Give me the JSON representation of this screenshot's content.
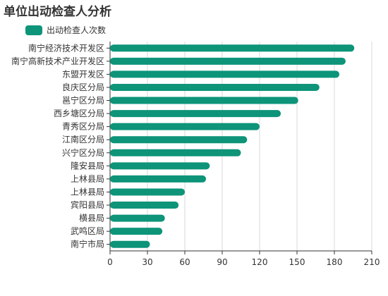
{
  "chart_data": {
    "type": "bar",
    "orientation": "horizontal",
    "title": "单位出动检查人分析",
    "categories": [
      "南宁经济技术开发区",
      "南宁高新技术产业开发区",
      "东盟开发区",
      "良庆区分局",
      "邕宁区分局",
      "西乡塘区分局",
      "青秀区分局",
      "江南区分局",
      "兴宁区分局",
      "隆安县局",
      "上林县局",
      "上林县局",
      "宾阳县局",
      "横县局",
      "武鸣区局",
      "南宁市局"
    ],
    "series": [
      {
        "name": "出动检查人次数",
        "values": [
          196,
          189,
          184,
          168,
          151,
          137,
          120,
          110,
          105,
          80,
          77,
          60,
          55,
          44,
          42,
          32
        ]
      }
    ],
    "xlim": [
      0,
      210
    ],
    "xticks": [
      0,
      30,
      60,
      90,
      120,
      150,
      180,
      210
    ],
    "grid": true,
    "legend_position": "top-left",
    "colors": {
      "bar": "#0d9479",
      "grid": "#d9d9d9",
      "axis": "#333333"
    }
  }
}
